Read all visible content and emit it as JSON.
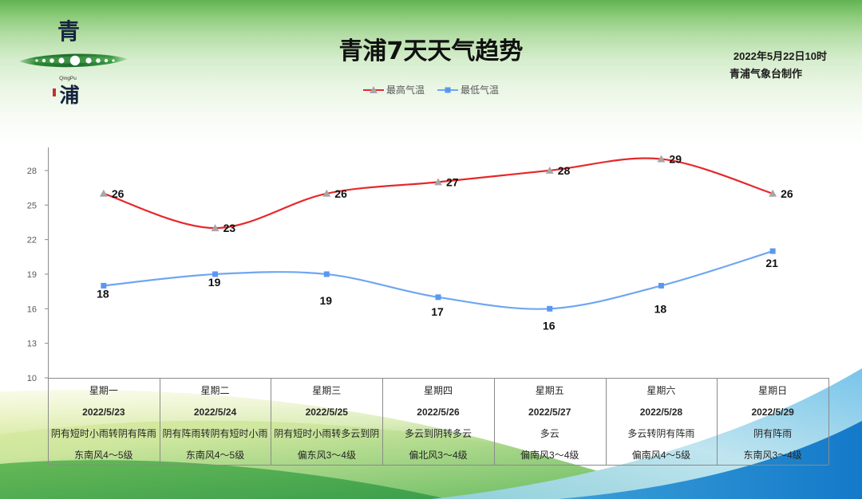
{
  "logo": {
    "top_char": "青",
    "latin": "QingPu",
    "bottom_char": "浦"
  },
  "issue": {
    "time": "2022年5月22日10时",
    "issuer": "青浦气象台制作"
  },
  "chart_data": {
    "type": "line",
    "title": "青浦7天天气趋势",
    "categories": [
      "星期一",
      "星期二",
      "星期三",
      "星期四",
      "星期五",
      "星期六",
      "星期日"
    ],
    "series": [
      {
        "name": "最高气温",
        "values": [
          26,
          23,
          26,
          27,
          28,
          29,
          26
        ],
        "color": "#e6282b",
        "marker": "triangle",
        "marker_color": "#a6a6a6"
      },
      {
        "name": "最低气温",
        "values": [
          18,
          19,
          19,
          17,
          16,
          18,
          21
        ],
        "color": "#6ea6f3",
        "marker": "square",
        "marker_color": "#5b97f0"
      }
    ],
    "ylim": [
      10,
      30
    ],
    "yticks": [
      10,
      13,
      16,
      19,
      22,
      25,
      28
    ],
    "grid": false,
    "legend": "top-center",
    "smooth": true,
    "data_labels": true
  },
  "forecast_table": {
    "dates": [
      "2022/5/23",
      "2022/5/24",
      "2022/5/25",
      "2022/5/26",
      "2022/5/27",
      "2022/5/28",
      "2022/5/29"
    ],
    "weather": [
      "阴有短时小雨转阴有阵雨",
      "阴有阵雨转阴有短时小雨",
      "阴有短时小雨转多云到阴",
      "多云到阴转多云",
      "多云",
      "多云转阴有阵雨",
      "阴有阵雨"
    ],
    "wind": [
      "东南风4～5级",
      "东南风4～5级",
      "偏东风3～4级",
      "偏北风3～4级",
      "偏南风3～4级",
      "偏南风4～5级",
      "东南风3～4级"
    ]
  },
  "colors": {
    "header_green": "#63b252",
    "axis": "#8a8a8a",
    "wave_green": "#4fae4a",
    "wave_blue": "#1b86d2"
  }
}
